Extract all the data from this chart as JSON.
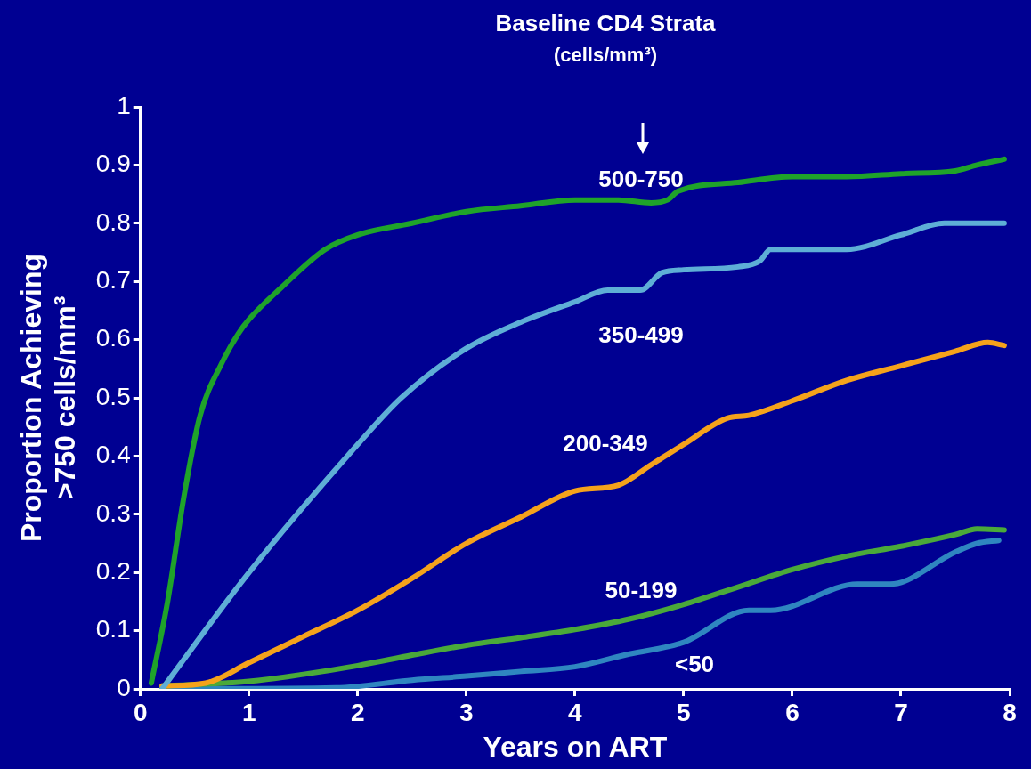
{
  "chart_data": {
    "type": "line",
    "legend_title": "Baseline CD4 Strata\n(cells/mm³)",
    "xlabel": "Years on ART",
    "ylabel": "Proportion Achieving\n>750 cells/mm³",
    "xlim": [
      0,
      8
    ],
    "xticks": [
      0,
      1,
      2,
      3,
      4,
      5,
      6,
      7,
      8
    ],
    "ylim": [
      0,
      1
    ],
    "yticks": [
      0,
      0.1,
      0.2,
      0.3,
      0.4,
      0.5,
      0.6,
      0.7,
      0.8,
      0.9,
      1
    ],
    "grid": false,
    "legend": false,
    "marker": "none",
    "line_style": "solid",
    "series": [
      {
        "name": "500-750",
        "color": "#1fa32a",
        "x": [
          0.1,
          0.25,
          0.4,
          0.55,
          0.75,
          0.9,
          1,
          1.3,
          1.7,
          2,
          2.5,
          3,
          3.5,
          4,
          4.4,
          4.7,
          4.85,
          4.95,
          5.5,
          6,
          6.5,
          7,
          7.5,
          7.7,
          7.95
        ],
        "values": [
          0.01,
          0.15,
          0.33,
          0.47,
          0.56,
          0.61,
          0.635,
          0.69,
          0.755,
          0.78,
          0.8,
          0.82,
          0.83,
          0.84,
          0.84,
          0.835,
          0.84,
          0.855,
          0.87,
          0.88,
          0.88,
          0.885,
          0.89,
          0.9,
          0.91
        ]
      },
      {
        "name": "350-499",
        "color": "#5eaed6",
        "x": [
          0.2,
          1,
          2,
          2.4,
          3,
          3.5,
          4,
          4.3,
          4.6,
          4.8,
          5,
          5.5,
          5.7,
          5.8,
          6,
          6.5,
          7,
          7.4,
          7.7,
          7.95
        ],
        "values": [
          0,
          0.2,
          0.42,
          0.5,
          0.585,
          0.63,
          0.665,
          0.685,
          0.685,
          0.715,
          0.72,
          0.725,
          0.735,
          0.755,
          0.755,
          0.755,
          0.78,
          0.8,
          0.8,
          0.8
        ]
      },
      {
        "name": "200-349",
        "color": "#f5a21b",
        "x": [
          0.2,
          0.6,
          1,
          1.5,
          2,
          2.5,
          3,
          3.5,
          4,
          4.4,
          4.7,
          5,
          5.4,
          5.6,
          6,
          6.5,
          7,
          7.5,
          7.8,
          7.95
        ],
        "values": [
          0.005,
          0.01,
          0.045,
          0.09,
          0.135,
          0.19,
          0.25,
          0.295,
          0.34,
          0.35,
          0.385,
          0.42,
          0.465,
          0.47,
          0.495,
          0.53,
          0.555,
          0.58,
          0.595,
          0.59
        ]
      },
      {
        "name": "50-199",
        "color": "#4aa93a",
        "x": [
          0.2,
          1,
          1.5,
          2,
          2.5,
          3,
          3.5,
          4,
          4.5,
          5,
          5.5,
          6,
          6.5,
          7,
          7.5,
          7.7,
          7.95
        ],
        "values": [
          0.005,
          0.013,
          0.025,
          0.04,
          0.058,
          0.075,
          0.088,
          0.102,
          0.12,
          0.145,
          0.175,
          0.205,
          0.228,
          0.245,
          0.265,
          0.275,
          0.273
        ]
      },
      {
        "name": "<50",
        "color": "#2f86c0",
        "x": [
          0.2,
          1.8,
          2.5,
          3,
          3.5,
          4,
          4.5,
          5,
          5.6,
          5.8,
          6.6,
          6.9,
          7.5,
          7.7,
          7.9
        ],
        "values": [
          0,
          0.002,
          0.015,
          0.022,
          0.03,
          0.038,
          0.06,
          0.08,
          0.135,
          0.135,
          0.18,
          0.18,
          0.235,
          0.25,
          0.255
        ]
      }
    ]
  }
}
